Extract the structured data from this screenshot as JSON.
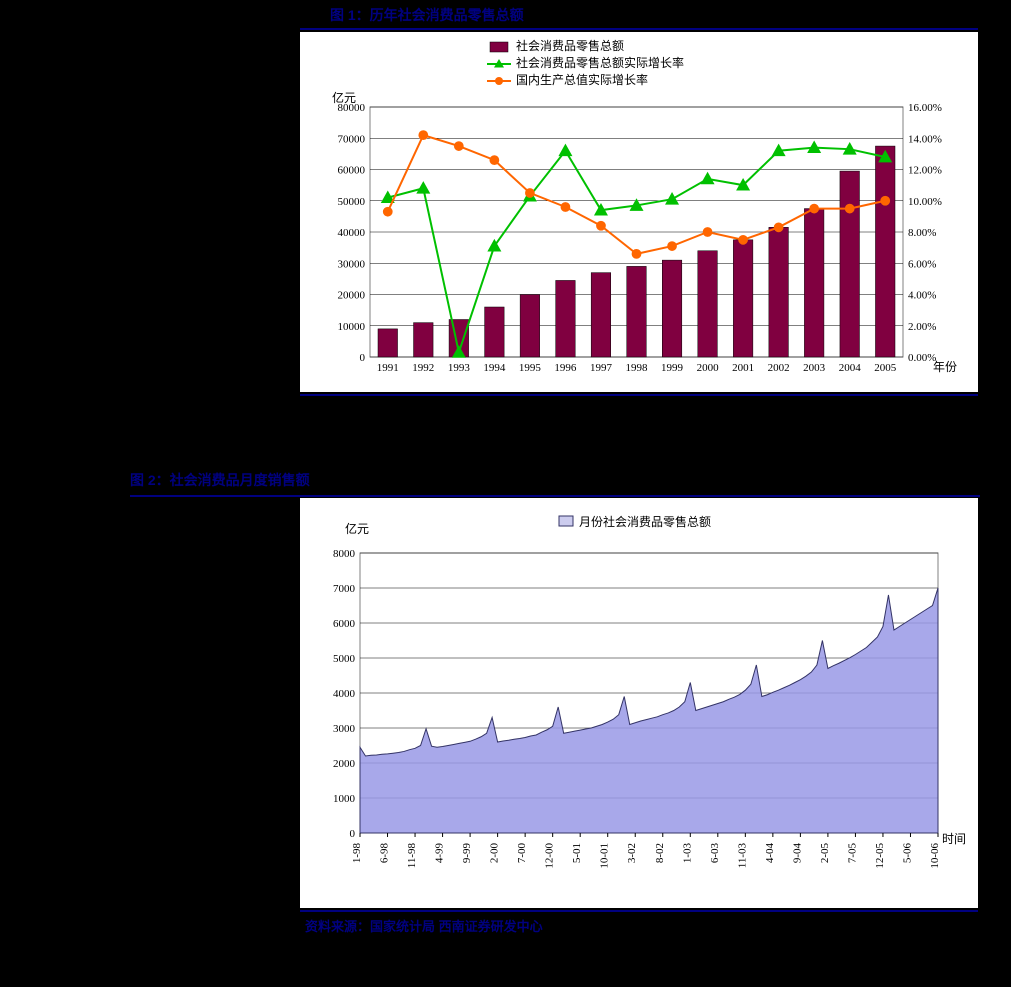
{
  "figure1": {
    "title": "图 1：历年社会消费品零售总额",
    "chart": {
      "type": "combo-bar-line",
      "background_color": "#ffffff",
      "plot_border_color": "#808080",
      "grid_color": "#000000",
      "grid_linewidth": 0.5,
      "font_family": "SimSun",
      "axis_fontsize": 11,
      "legend_fontsize": 12,
      "y_left": {
        "label": "亿元",
        "min": 0,
        "max": 80000,
        "tick_step": 10000
      },
      "y_right": {
        "min": 0,
        "max": 16,
        "tick_step": 2,
        "tick_format": "{v}.00%"
      },
      "x": {
        "label": "年份",
        "categories": [
          "1991",
          "1992",
          "1993",
          "1994",
          "1995",
          "1996",
          "1997",
          "1998",
          "1999",
          "2000",
          "2001",
          "2002",
          "2003",
          "2004",
          "2005"
        ]
      },
      "series": [
        {
          "name": "社会消费品零售总额",
          "kind": "bar",
          "axis": "left",
          "color": "#800040",
          "bar_width": 0.55,
          "values": [
            9000,
            11000,
            12000,
            16000,
            20000,
            24500,
            27000,
            29000,
            31000,
            34000,
            37500,
            41500,
            47500,
            59500,
            67500
          ]
        },
        {
          "name": "社会消费品零售总额实际增长率",
          "kind": "line",
          "axis": "right",
          "color": "#00c000",
          "marker": "triangle",
          "marker_size": 8,
          "line_width": 2,
          "values": [
            10.2,
            10.8,
            0.3,
            7.1,
            10.3,
            13.2,
            9.4,
            9.7,
            10.1,
            11.4,
            11.0,
            13.2,
            13.4,
            13.3,
            12.8
          ]
        },
        {
          "name": "国内生产总值实际增长率",
          "kind": "line",
          "axis": "right",
          "color": "#ff6600",
          "marker": "circle",
          "marker_size": 7,
          "line_width": 2,
          "values": [
            9.3,
            14.2,
            13.5,
            12.6,
            10.5,
            9.6,
            8.4,
            6.6,
            7.1,
            8.0,
            7.5,
            8.3,
            9.5,
            9.5,
            10.0
          ]
        }
      ],
      "legend": {
        "position": "top-center",
        "items_order": [
          0,
          1,
          2
        ]
      }
    }
  },
  "figure2": {
    "title": "图 2：社会消费品月度销售额",
    "source": "资料来源：国家统计局 西南证券研发中心",
    "chart": {
      "type": "area",
      "background_color": "#ffffff",
      "plot_border_color": "#808080",
      "grid_color": "#000000",
      "grid_linewidth": 0.5,
      "font_family": "SimSun",
      "axis_fontsize": 11,
      "legend_fontsize": 12,
      "y": {
        "label": "亿元",
        "min": 0,
        "max": 8000,
        "tick_step": 1000
      },
      "x": {
        "label": "时间",
        "tick_labels": [
          "1-98",
          "6-98",
          "11-98",
          "4-99",
          "9-99",
          "2-00",
          "7-00",
          "12-00",
          "5-01",
          "10-01",
          "3-02",
          "8-02",
          "1-03",
          "6-03",
          "11-03",
          "4-04",
          "9-04",
          "2-05",
          "7-05",
          "12-05",
          "5-06",
          "10-06"
        ],
        "tick_rotation": -90
      },
      "series": [
        {
          "name": "月份社会消费品零售总额",
          "kind": "area",
          "fill_color": "#9999e6",
          "fill_opacity": 0.85,
          "line_color": "#333366",
          "line_width": 1,
          "swatch_fill": "#ccccee",
          "values": [
            2450,
            2200,
            2220,
            2230,
            2250,
            2260,
            2280,
            2300,
            2330,
            2380,
            2420,
            2500,
            2980,
            2480,
            2450,
            2470,
            2500,
            2530,
            2560,
            2590,
            2620,
            2680,
            2750,
            2850,
            3300,
            2600,
            2630,
            2650,
            2680,
            2700,
            2730,
            2770,
            2800,
            2880,
            2950,
            3050,
            3600,
            2850,
            2880,
            2910,
            2940,
            2970,
            3000,
            3050,
            3100,
            3170,
            3250,
            3380,
            3900,
            3100,
            3150,
            3200,
            3240,
            3280,
            3320,
            3380,
            3430,
            3500,
            3600,
            3750,
            4300,
            3500,
            3550,
            3600,
            3650,
            3700,
            3750,
            3820,
            3880,
            3960,
            4080,
            4250,
            4800,
            3900,
            3950,
            4020,
            4080,
            4150,
            4220,
            4300,
            4380,
            4480,
            4600,
            4800,
            5500,
            4700,
            4780,
            4850,
            4930,
            5010,
            5100,
            5200,
            5300,
            5450,
            5600,
            5900,
            6800,
            5800,
            5900,
            6000,
            6100,
            6200,
            6300,
            6400,
            6500,
            7000
          ]
        }
      ],
      "legend": {
        "position": "top-center"
      }
    }
  }
}
